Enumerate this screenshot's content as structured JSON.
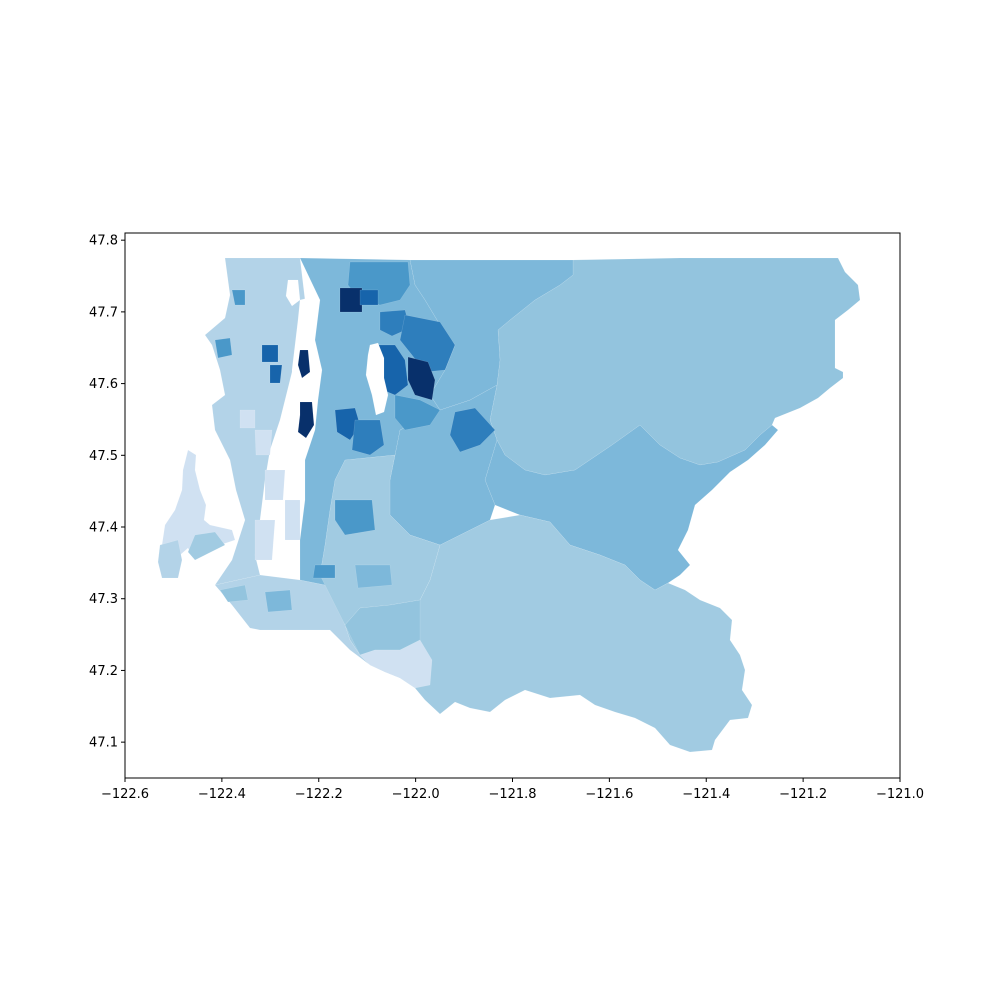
{
  "map": {
    "type": "choropleth",
    "colormap": "Blues",
    "colors": {
      "water": "#ffffff",
      "lightest": "#d0e1f2",
      "light": "#b3d3e8",
      "mid_light": "#a1cbe2",
      "mid": "#93c4de",
      "mid_dark": "#7db8da",
      "medium": "#4a98c9",
      "dark": "#2e7ebc",
      "darker": "#1764ab",
      "darkest": "#08306b"
    },
    "xaxis": {
      "range": [
        -122.6,
        -121.0
      ],
      "ticks": [
        -122.6,
        -122.4,
        -122.2,
        -122.0,
        -121.8,
        -121.6,
        -121.4,
        -121.2,
        -121.0
      ],
      "tick_labels": [
        "−122.6",
        "−122.4",
        "−122.2",
        "−122.0",
        "−121.8",
        "−121.6",
        "−121.4",
        "−121.2",
        "−121.0"
      ]
    },
    "yaxis": {
      "range": [
        47.05,
        47.81
      ],
      "ticks": [
        47.1,
        47.2,
        47.3,
        47.4,
        47.5,
        47.6,
        47.7,
        47.8
      ],
      "tick_labels": [
        "47.1",
        "47.2",
        "47.3",
        "47.4",
        "47.5",
        "47.6",
        "47.7",
        "47.8"
      ]
    },
    "grid": false
  }
}
